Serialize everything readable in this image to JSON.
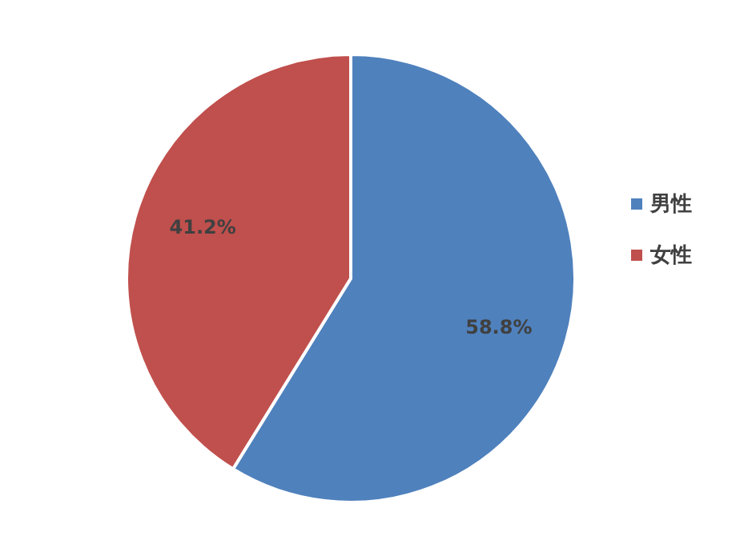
{
  "chart_data": {
    "type": "pie",
    "categories": [
      "男性",
      "女性"
    ],
    "values": [
      58.8,
      41.2
    ],
    "colors": [
      "#4f81bd",
      "#c0504d"
    ],
    "value_labels": [
      "58.8%",
      "41.2%"
    ],
    "legend": "right"
  }
}
